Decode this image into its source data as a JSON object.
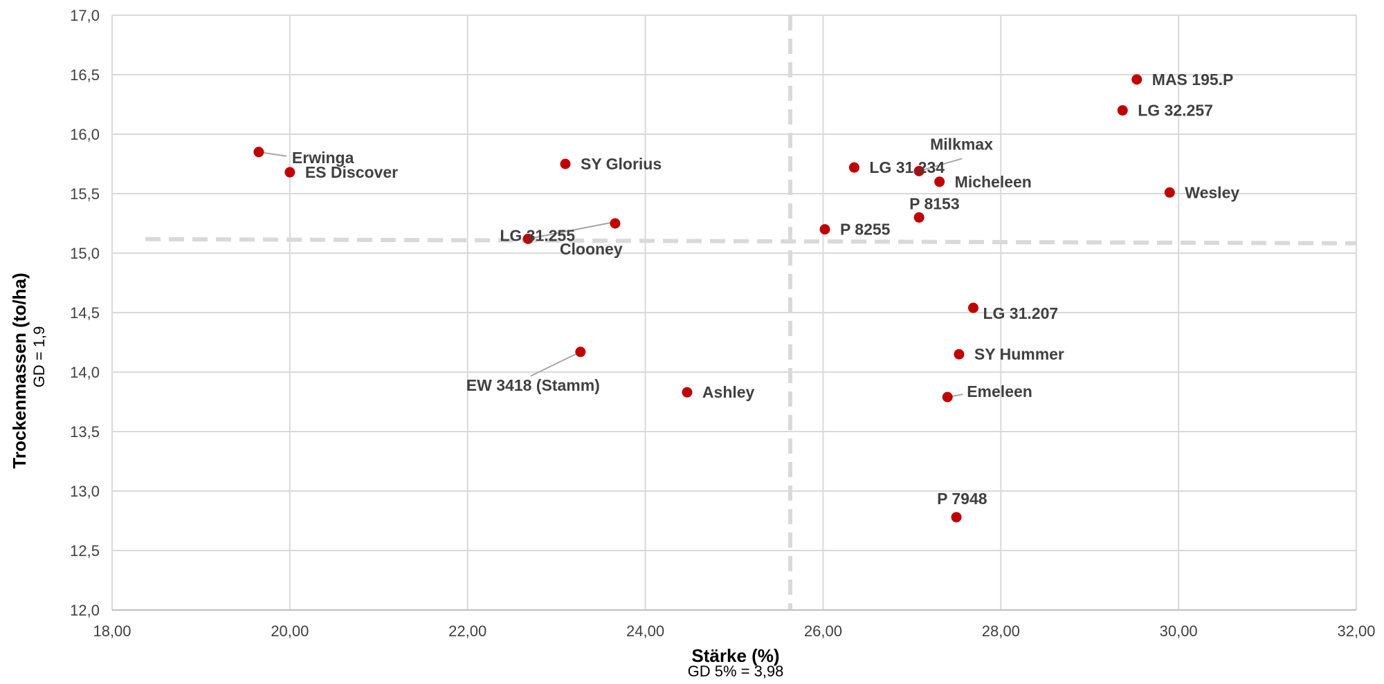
{
  "chart_data": {
    "type": "scatter",
    "xlabel": "Stärke (%)",
    "xlabel_sub": "GD 5% = 3,98",
    "ylabel": "Trockenmassen (to/ha)",
    "ylabel_sub": "GD = 1,9",
    "xlim": [
      18,
      32
    ],
    "ylim": [
      12,
      17
    ],
    "x_ticks": [
      18,
      20,
      22,
      24,
      26,
      28,
      30,
      32
    ],
    "x_tick_labels": [
      "18,00",
      "20,00",
      "22,00",
      "24,00",
      "26,00",
      "28,00",
      "30,00",
      "32,00"
    ],
    "y_ticks": [
      12,
      12.5,
      13,
      13.5,
      14,
      14.5,
      15,
      15.5,
      16,
      16.5,
      17
    ],
    "y_tick_labels": [
      "12,0",
      "12,5",
      "13,0",
      "13,5",
      "14,0",
      "14,5",
      "15,0",
      "15,5",
      "16,0",
      "16,5",
      "17,0"
    ],
    "grid": true,
    "reference_lines": [
      {
        "orientation": "vertical",
        "x": 25.63
      },
      {
        "orientation": "horizontal",
        "y": 15.1
      }
    ],
    "marker_color": "#c00000",
    "points": [
      {
        "label": "MAS 195.P",
        "x": 29.53,
        "y": 16.46
      },
      {
        "label": "LG 32.257",
        "x": 29.37,
        "y": 16.2
      },
      {
        "label": "Erwinga",
        "x": 19.65,
        "y": 15.85
      },
      {
        "label": "ES Discover",
        "x": 20.0,
        "y": 15.68
      },
      {
        "label": "SY Glorius",
        "x": 23.1,
        "y": 15.75
      },
      {
        "label": "LG 31.234",
        "x": 26.35,
        "y": 15.72
      },
      {
        "label": "Milkmax",
        "x": 27.08,
        "y": 15.69
      },
      {
        "label": "Micheleen",
        "x": 27.31,
        "y": 15.6
      },
      {
        "label": "Wesley",
        "x": 29.9,
        "y": 15.51
      },
      {
        "label": "P 8153",
        "x": 27.08,
        "y": 15.3
      },
      {
        "label": "Clooney",
        "x": 23.66,
        "y": 15.25
      },
      {
        "label": "P 8255",
        "x": 26.02,
        "y": 15.2
      },
      {
        "label": "LG 31.255",
        "x": 22.68,
        "y": 15.12
      },
      {
        "label": "LG 31.207",
        "x": 27.69,
        "y": 14.54
      },
      {
        "label": "EW 3418 (Stamm)",
        "x": 23.27,
        "y": 14.17
      },
      {
        "label": "SY Hummer",
        "x": 27.53,
        "y": 14.15
      },
      {
        "label": "Ashley",
        "x": 24.47,
        "y": 13.83
      },
      {
        "label": "Emeleen",
        "x": 27.4,
        "y": 13.79
      },
      {
        "label": "P 7948",
        "x": 27.5,
        "y": 12.78
      }
    ]
  }
}
